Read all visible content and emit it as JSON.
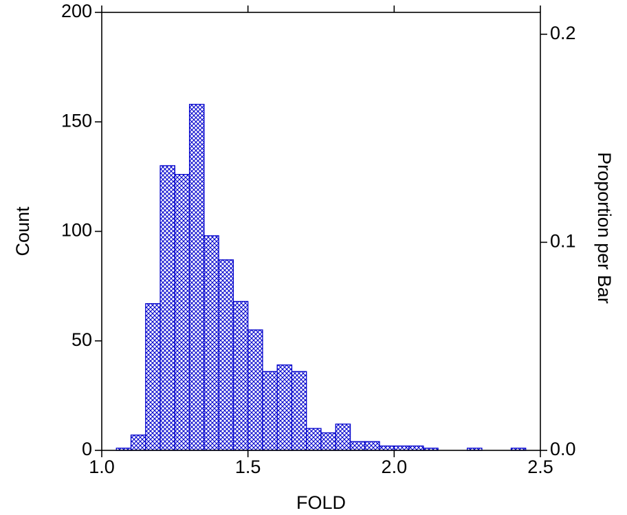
{
  "chart_data": {
    "type": "bar",
    "title": "",
    "xlabel": "FOLD",
    "ylabel": "Count",
    "ylabel_right": "Proportion per Bar",
    "xlim": [
      1.0,
      2.5
    ],
    "ylim": [
      0,
      200
    ],
    "ylim_right": [
      0.0,
      0.2105
    ],
    "bin_width": 0.05,
    "grid": false,
    "x_ticks": [
      "1.0",
      "1.5",
      "2.0",
      "2.5"
    ],
    "x_tick_values": [
      1.0,
      1.5,
      2.0,
      2.5
    ],
    "y_ticks": [
      "0",
      "50",
      "100",
      "150",
      "200"
    ],
    "y_tick_values": [
      0,
      50,
      100,
      150,
      200
    ],
    "y_right_ticks": [
      "0.0",
      "0.1",
      "0.2"
    ],
    "y_right_tick_values": [
      0.0,
      0.1,
      0.2
    ],
    "bins": [
      {
        "x0": 1.0,
        "x1": 1.05,
        "count": 0
      },
      {
        "x0": 1.05,
        "x1": 1.1,
        "count": 1
      },
      {
        "x0": 1.1,
        "x1": 1.15,
        "count": 7
      },
      {
        "x0": 1.15,
        "x1": 1.2,
        "count": 67
      },
      {
        "x0": 1.2,
        "x1": 1.25,
        "count": 130
      },
      {
        "x0": 1.25,
        "x1": 1.3,
        "count": 126
      },
      {
        "x0": 1.3,
        "x1": 1.35,
        "count": 158
      },
      {
        "x0": 1.35,
        "x1": 1.4,
        "count": 98
      },
      {
        "x0": 1.4,
        "x1": 1.45,
        "count": 87
      },
      {
        "x0": 1.45,
        "x1": 1.5,
        "count": 68
      },
      {
        "x0": 1.5,
        "x1": 1.55,
        "count": 55
      },
      {
        "x0": 1.55,
        "x1": 1.6,
        "count": 36
      },
      {
        "x0": 1.6,
        "x1": 1.65,
        "count": 39
      },
      {
        "x0": 1.65,
        "x1": 1.7,
        "count": 36
      },
      {
        "x0": 1.7,
        "x1": 1.75,
        "count": 10
      },
      {
        "x0": 1.75,
        "x1": 1.8,
        "count": 8
      },
      {
        "x0": 1.8,
        "x1": 1.85,
        "count": 12
      },
      {
        "x0": 1.85,
        "x1": 1.9,
        "count": 4
      },
      {
        "x0": 1.9,
        "x1": 1.95,
        "count": 4
      },
      {
        "x0": 1.95,
        "x1": 2.0,
        "count": 2
      },
      {
        "x0": 2.0,
        "x1": 2.05,
        "count": 2
      },
      {
        "x0": 2.05,
        "x1": 2.1,
        "count": 2
      },
      {
        "x0": 2.1,
        "x1": 2.15,
        "count": 1
      },
      {
        "x0": 2.15,
        "x1": 2.2,
        "count": 0
      },
      {
        "x0": 2.2,
        "x1": 2.25,
        "count": 0
      },
      {
        "x0": 2.25,
        "x1": 2.3,
        "count": 1
      },
      {
        "x0": 2.3,
        "x1": 2.35,
        "count": 0
      },
      {
        "x0": 2.35,
        "x1": 2.4,
        "count": 0
      },
      {
        "x0": 2.4,
        "x1": 2.45,
        "count": 1
      },
      {
        "x0": 2.45,
        "x1": 2.5,
        "count": 0
      }
    ],
    "colors": {
      "bar": "#0000cc",
      "axis": "#000000",
      "background": "#ffffff"
    },
    "bar_pattern": "crosshatch"
  }
}
